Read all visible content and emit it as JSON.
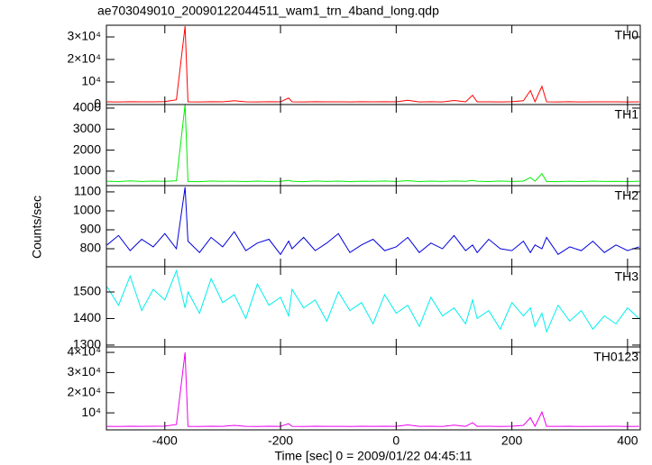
{
  "chart_data": {
    "type": "line",
    "title": "ae703049010_20090122044511_wam1_trn_4band_long.qdp",
    "ylabel": "Counts/sec",
    "xlabel": "Time [sec] 0 = 2009/01/22 04:45:11",
    "xlim": [
      -501,
      422
    ],
    "xticks": [
      -400,
      -200,
      0,
      200,
      400
    ],
    "x": [
      -500,
      -480,
      -460,
      -440,
      -420,
      -400,
      -380,
      -365,
      -360,
      -340,
      -320,
      -300,
      -280,
      -260,
      -240,
      -220,
      -200,
      -186,
      -180,
      -160,
      -140,
      -120,
      -100,
      -80,
      -60,
      -40,
      -20,
      0,
      20,
      40,
      60,
      80,
      100,
      120,
      132,
      140,
      160,
      180,
      200,
      220,
      232,
      240,
      252,
      260,
      280,
      300,
      320,
      340,
      360,
      380,
      400,
      420
    ],
    "series": [
      {
        "name": "TH0",
        "color": "#ff0000",
        "ylim": [
          0,
          35200
        ],
        "yticks": [
          0,
          {
            "value": 10000,
            "label": "10⁴"
          },
          {
            "value": 20000,
            "label": "2×10⁴"
          },
          {
            "value": 30000,
            "label": "3×10⁴"
          }
        ],
        "values": [
          1200,
          1150,
          1250,
          1180,
          1220,
          1300,
          2100,
          34800,
          1200,
          1150,
          1250,
          1180,
          1700,
          1200,
          1150,
          1230,
          1180,
          2900,
          1200,
          1160,
          1240,
          1190,
          1210,
          1150,
          1230,
          1180,
          1260,
          1200,
          1900,
          1170,
          1230,
          1160,
          1800,
          1200,
          4100,
          1180,
          1220,
          1150,
          1240,
          1700,
          6200,
          1250,
          8100,
          1200,
          1170,
          1230,
          1150,
          1200,
          1180,
          1220,
          1160,
          1200
        ]
      },
      {
        "name": "TH1",
        "color": "#00ee00",
        "ylim": [
          310,
          4170
        ],
        "yticks": [
          1000,
          2000,
          3000,
          4000
        ],
        "values": [
          520,
          505,
          535,
          510,
          525,
          515,
          540,
          4170,
          510,
          500,
          530,
          515,
          520,
          505,
          525,
          510,
          515,
          560,
          520,
          500,
          530,
          510,
          525,
          505,
          520,
          515,
          530,
          510,
          545,
          505,
          525,
          510,
          530,
          515,
          560,
          520,
          505,
          530,
          510,
          525,
          700,
          520,
          880,
          510,
          500,
          520,
          505,
          525,
          510,
          515,
          505,
          520
        ]
      },
      {
        "name": "TH2",
        "color": "#0000dd",
        "ylim": [
          705,
          1133
        ],
        "yticks": [
          800,
          900,
          1000,
          1100
        ],
        "values": [
          820,
          870,
          790,
          850,
          810,
          880,
          800,
          1125,
          840,
          780,
          860,
          810,
          890,
          790,
          830,
          850,
          770,
          840,
          800,
          860,
          790,
          830,
          880,
          780,
          820,
          850,
          790,
          810,
          860,
          780,
          830,
          800,
          870,
          790,
          820,
          780,
          850,
          800,
          790,
          840,
          780,
          820,
          800,
          860,
          770,
          810,
          790,
          840,
          780,
          820,
          790,
          810
        ]
      },
      {
        "name": "TH3",
        "color": "#00eeee",
        "ylim": [
          1293,
          1595
        ],
        "yticks": [
          1300,
          1400,
          1500
        ],
        "values": [
          1520,
          1450,
          1560,
          1430,
          1510,
          1470,
          1580,
          1440,
          1500,
          1420,
          1550,
          1460,
          1490,
          1400,
          1530,
          1450,
          1480,
          1410,
          1510,
          1440,
          1470,
          1390,
          1500,
          1430,
          1460,
          1380,
          1490,
          1420,
          1450,
          1370,
          1480,
          1410,
          1440,
          1380,
          1470,
          1400,
          1430,
          1360,
          1460,
          1410,
          1440,
          1370,
          1420,
          1350,
          1450,
          1390,
          1430,
          1360,
          1410,
          1380,
          1440,
          1400
        ]
      },
      {
        "name": "TH0123",
        "color": "#ee00ee",
        "ylim": [
          1560,
          42700
        ],
        "yticks": [
          {
            "value": 10000,
            "label": "10⁴"
          },
          {
            "value": 20000,
            "label": "2×10⁴"
          },
          {
            "value": 30000,
            "label": "3×10⁴"
          },
          {
            "value": 40000,
            "label": "4×10⁴"
          }
        ],
        "values": [
          3300,
          3250,
          3350,
          3280,
          3320,
          3400,
          4200,
          40000,
          3300,
          3250,
          3350,
          3280,
          3800,
          3300,
          3250,
          3330,
          3280,
          4600,
          3300,
          3260,
          3340,
          3290,
          3310,
          3250,
          3330,
          3280,
          3360,
          3300,
          4000,
          3270,
          3330,
          3260,
          3900,
          3300,
          5100,
          3280,
          3320,
          3250,
          3340,
          3800,
          7600,
          3350,
          10400,
          3300,
          3270,
          3330,
          3250,
          3300,
          3280,
          3320,
          3260,
          3300
        ]
      }
    ]
  }
}
